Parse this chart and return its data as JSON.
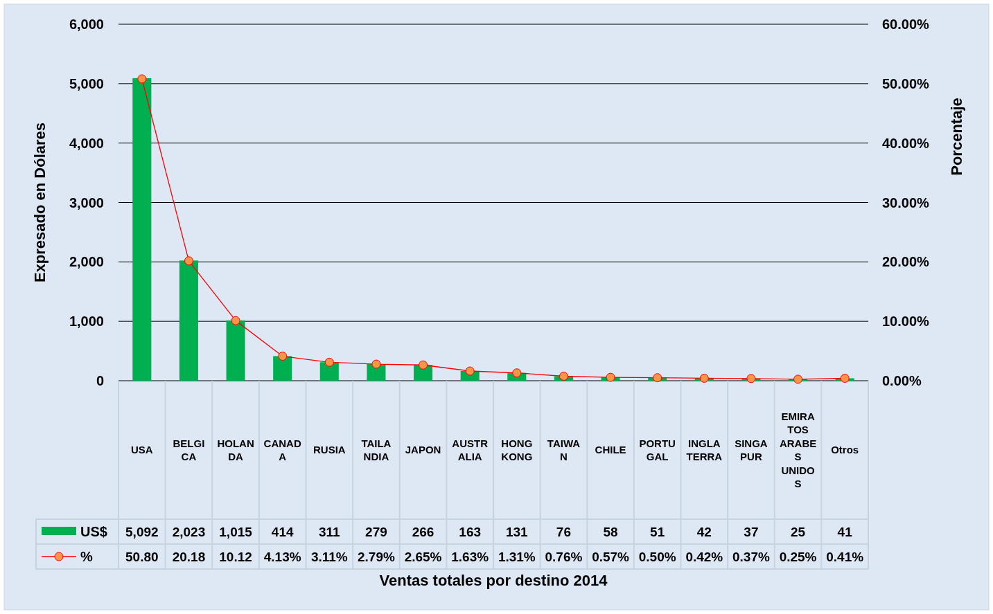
{
  "chart_data": {
    "type": "bar",
    "annotations": [
      "Ventas totales por destino 2014"
    ],
    "ylabel": "Expresado en Dólares",
    "y2label": "Porcentaje",
    "categories": [
      "USA",
      "BELGICA",
      "HOLANDA",
      "CANADA",
      "RUSIA",
      "TAILANDIA",
      "JAPON",
      "AUSTRALIA",
      "HONG KONG",
      "TAIWAN",
      "CHILE",
      "PORTUGAL",
      "INGLATERRA",
      "SINGAPUR",
      "EMIRATOS ARABES UNIDOS",
      "Otros"
    ],
    "series": [
      {
        "name": "US$",
        "color": "#00b050",
        "values": [
          5092,
          2023,
          1015,
          414,
          311,
          279,
          266,
          163,
          131,
          76,
          58,
          51,
          42,
          37,
          25,
          41
        ],
        "value_labels": [
          "5,092",
          "2,023",
          "1,015",
          "414",
          "311",
          "279",
          "266",
          "163",
          "131",
          "76",
          "58",
          "51",
          "42",
          "37",
          "25",
          "41"
        ]
      },
      {
        "name": "%",
        "type": "line",
        "axis": "y2",
        "color": "#ff0000",
        "values": [
          50.8,
          20.18,
          10.12,
          4.13,
          3.11,
          2.79,
          2.65,
          1.63,
          1.31,
          0.76,
          0.57,
          0.5,
          0.42,
          0.37,
          0.25,
          0.41
        ],
        "value_labels": [
          "50.80",
          "20.18",
          "10.12",
          "4.13%",
          "3.11%",
          "2.79%",
          "2.65%",
          "1.63%",
          "1.31%",
          "0.76%",
          "0.57%",
          "0.50%",
          "0.42%",
          "0.37%",
          "0.25%",
          "0.41%"
        ]
      }
    ],
    "ylim": [
      0,
      6000
    ],
    "yticks": [
      {
        "value": 0,
        "label": "0"
      },
      {
        "value": 1000,
        "label": "1,000"
      },
      {
        "value": 2000,
        "label": "2,000"
      },
      {
        "value": 3000,
        "label": "3,000"
      },
      {
        "value": 4000,
        "label": "4,000"
      },
      {
        "value": 5000,
        "label": "5,000"
      },
      {
        "value": 6000,
        "label": "6,000"
      }
    ],
    "y2lim": [
      0,
      60
    ],
    "y2ticks": [
      {
        "value": 0,
        "label": "0.00%"
      },
      {
        "value": 10,
        "label": "10.00%"
      },
      {
        "value": 20,
        "label": "20.00%"
      },
      {
        "value": 30,
        "label": "30.00%"
      },
      {
        "value": 40,
        "label": "40.00%"
      },
      {
        "value": 50,
        "label": "50.00%"
      },
      {
        "value": 60,
        "label": "60.00%"
      }
    ],
    "grid": "y",
    "legend": "bottom",
    "marker": "circle",
    "line_style": "solid"
  }
}
